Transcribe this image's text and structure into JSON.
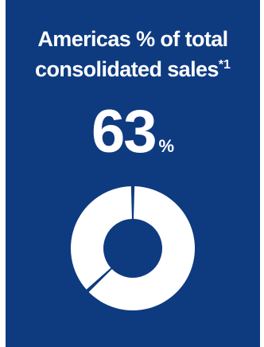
{
  "card": {
    "background": "#0e3b80"
  },
  "title": {
    "line1": "Americas % of total",
    "line2": "consolidated sales",
    "footnote": "*1"
  },
  "headline": {
    "value": "63",
    "unit": "%"
  },
  "chart_data": {
    "type": "pie",
    "style": "donut",
    "slices": [
      {
        "value": 63,
        "color": "#ffffff"
      },
      {
        "value": 37,
        "color": "#ffffff"
      }
    ],
    "center_color": "#0e3b80"
  }
}
